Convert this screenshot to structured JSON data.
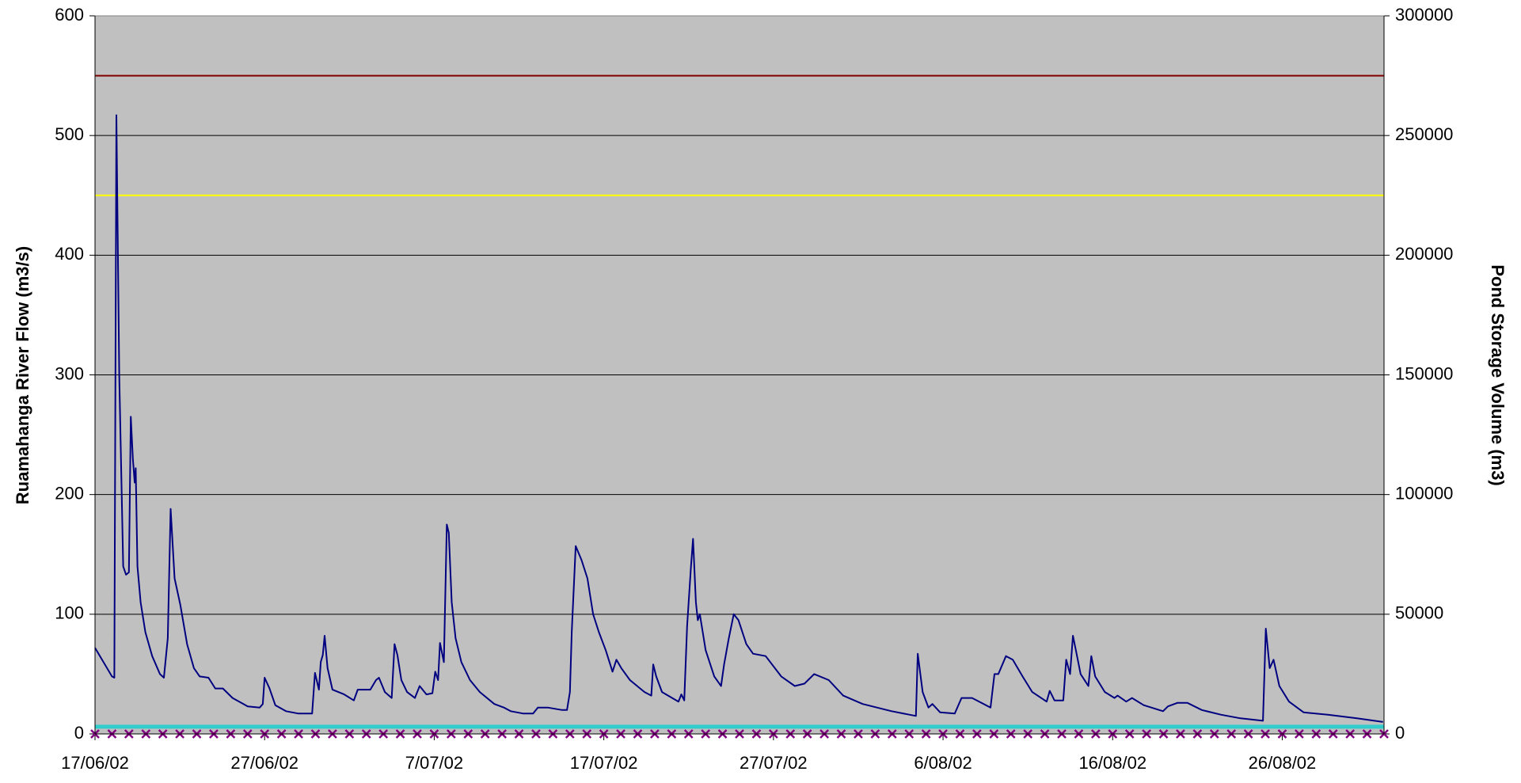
{
  "chart_data": {
    "type": "line",
    "y_label": "Ruamahanga River Flow (m3/s)",
    "y2_label": "Pond Storage Volume (m3)",
    "xlim": [
      0,
      76
    ],
    "xticks": [
      {
        "value": 0,
        "label": "17/06/02"
      },
      {
        "value": 10,
        "label": "27/06/02"
      },
      {
        "value": 20,
        "label": "7/07/02"
      },
      {
        "value": 30,
        "label": "17/07/02"
      },
      {
        "value": 40,
        "label": "27/07/02"
      },
      {
        "value": 50,
        "label": "6/08/02"
      },
      {
        "value": 60,
        "label": "16/08/02"
      },
      {
        "value": 70,
        "label": "26/08/02"
      }
    ],
    "ylim": [
      0,
      600
    ],
    "yticks": [
      0,
      100,
      200,
      300,
      400,
      500,
      600
    ],
    "y2lim": [
      0,
      300000
    ],
    "y2ticks": [
      0,
      50000,
      100000,
      150000,
      200000,
      250000,
      300000
    ],
    "grid": true,
    "background": "#c0c0c0",
    "series": [
      {
        "color": "#000080",
        "x": [
          0,
          1.0,
          1.14,
          1.26,
          1.43,
          1.66,
          1.83,
          2.0,
          2.11,
          2.23,
          2.34,
          2.4,
          2.5,
          2.69,
          2.97,
          3.37,
          3.83,
          4.06,
          4.29,
          4.46,
          4.69,
          5.03,
          5.43,
          5.83,
          6.17,
          6.69,
          7.09,
          7.54,
          8.11,
          9.0,
          9.71,
          9.89,
          10.0,
          10.29,
          10.63,
          11.26,
          12.0,
          12.8,
          12.97,
          13.2,
          13.31,
          13.43,
          13.54,
          13.71,
          14.0,
          14.69,
          15.26,
          15.49,
          16.23,
          16.57,
          16.74,
          17.09,
          17.49,
          17.66,
          17.83,
          18.06,
          18.4,
          18.86,
          19.14,
          19.54,
          19.89,
          20.06,
          20.23,
          20.34,
          20.57,
          20.74,
          20.86,
          21.03,
          21.26,
          21.6,
          22.11,
          22.69,
          23.54,
          24.11,
          24.51,
          25.26,
          25.83,
          26.11,
          26.69,
          27.54,
          27.83,
          28.0,
          28.11,
          28.34,
          28.69,
          29.03,
          29.37,
          29.71,
          30.11,
          30.51,
          30.74,
          31.03,
          31.54,
          32.4,
          32.8,
          32.91,
          33.09,
          33.43,
          34.4,
          34.57,
          34.74,
          34.91,
          35.14,
          35.26,
          35.43,
          35.54,
          35.66,
          36.0,
          36.51,
          36.91,
          37.09,
          37.37,
          37.66,
          37.94,
          38.4,
          38.8,
          39.54,
          40.46,
          41.26,
          41.83,
          42.4,
          43.26,
          44.11,
          45.26,
          46.97,
          48.4,
          48.51,
          48.8,
          49.14,
          49.37,
          49.83,
          50.69,
          51.09,
          51.71,
          52.8,
          53.03,
          53.26,
          53.71,
          54.11,
          54.69,
          55.26,
          56.11,
          56.29,
          56.57,
          57.09,
          57.26,
          57.49,
          57.66,
          57.83,
          58.11,
          58.57,
          58.74,
          58.97,
          59.54,
          60.11,
          60.29,
          60.8,
          61.14,
          61.83,
          62.97,
          63.26,
          63.83,
          64.4,
          65.26,
          66.4,
          67.54,
          68.86,
          69.03,
          69.26,
          69.49,
          69.83,
          70.4,
          71.26,
          72.69,
          74.4,
          75.94
        ],
        "values": [
          72,
          48,
          47,
          517,
          300,
          140,
          133,
          135,
          265,
          230,
          210,
          222,
          140,
          110,
          85,
          65,
          50,
          47,
          80,
          188,
          130,
          108,
          75,
          55,
          48,
          47,
          38,
          38,
          30,
          23,
          22,
          25,
          47,
          38,
          24,
          19,
          17,
          17,
          51,
          37,
          60,
          66,
          82,
          55,
          37,
          33,
          28,
          37,
          37,
          45,
          47,
          35,
          30,
          75,
          66,
          45,
          35,
          30,
          40,
          33,
          34,
          52,
          45,
          76,
          60,
          175,
          168,
          110,
          80,
          60,
          45,
          35,
          25,
          22,
          19,
          17,
          17,
          22,
          22,
          20,
          20,
          35,
          85,
          157,
          145,
          130,
          100,
          85,
          70,
          52,
          62,
          55,
          45,
          35,
          32,
          58,
          48,
          35,
          27,
          33,
          28,
          90,
          140,
          163,
          110,
          95,
          100,
          70,
          48,
          40,
          58,
          80,
          100,
          95,
          75,
          67,
          65,
          48,
          40,
          42,
          50,
          45,
          32,
          25,
          19,
          15,
          67,
          35,
          22,
          25,
          18,
          17,
          30,
          30,
          22,
          50,
          50,
          65,
          62,
          48,
          35,
          27,
          36,
          28,
          28,
          62,
          50,
          82,
          70,
          50,
          40,
          65,
          48,
          35,
          30,
          32,
          27,
          30,
          24,
          19,
          23,
          26,
          26,
          20,
          16,
          13,
          11,
          88,
          55,
          62,
          40,
          27,
          18,
          16,
          13,
          10
        ]
      },
      {
        "color": "#800000",
        "x": [
          0,
          76
        ],
        "values": [
          550,
          550
        ]
      },
      {
        "color": "#ffff00",
        "x": [
          0,
          76
        ],
        "values": [
          450,
          450
        ]
      },
      {
        "color": "#33cccc",
        "x": [
          0,
          76
        ],
        "values": [
          6,
          6
        ]
      },
      {
        "color": "#800080",
        "axis": "y2",
        "marker": "x",
        "x": [
          0,
          1,
          2,
          3,
          4,
          5,
          6,
          7,
          8,
          9,
          10,
          11,
          12,
          13,
          14,
          15,
          16,
          17,
          18,
          19,
          20,
          21,
          22,
          23,
          24,
          25,
          26,
          27,
          28,
          29,
          30,
          31,
          32,
          33,
          34,
          35,
          36,
          37,
          38,
          39,
          40,
          41,
          42,
          43,
          44,
          45,
          46,
          47,
          48,
          49,
          50,
          51,
          52,
          53,
          54,
          55,
          56,
          57,
          58,
          59,
          60,
          61,
          62,
          63,
          64,
          65,
          66,
          67,
          68,
          69,
          70,
          71,
          72,
          73,
          74,
          75,
          76
        ],
        "values": [
          0,
          0,
          0,
          0,
          0,
          0,
          0,
          0,
          0,
          0,
          0,
          0,
          0,
          0,
          0,
          0,
          0,
          0,
          0,
          0,
          0,
          0,
          0,
          0,
          0,
          0,
          0,
          0,
          0,
          0,
          0,
          0,
          0,
          0,
          0,
          0,
          0,
          0,
          0,
          0,
          0,
          0,
          0,
          0,
          0,
          0,
          0,
          0,
          0,
          0,
          0,
          0,
          0,
          0,
          0,
          0,
          0,
          0,
          0,
          0,
          0,
          0,
          0,
          0,
          0,
          0,
          0,
          0,
          0,
          0,
          0,
          0,
          0,
          0,
          0,
          0,
          0
        ]
      }
    ]
  }
}
